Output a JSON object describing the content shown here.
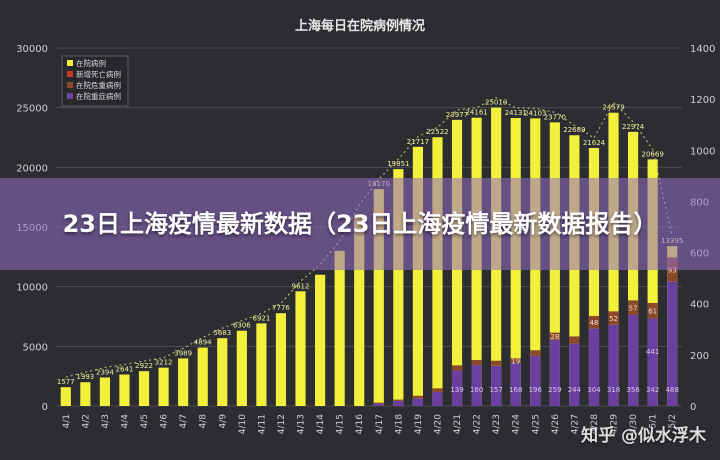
{
  "overlay_title": "23日上海疫情最新数据（23日上海疫情最新数据报告）",
  "watermark": "知乎 @似水浮木",
  "colors": {
    "background": "#2b2d31",
    "inpatient": "#f2f03a",
    "new_deaths": "#c0392b",
    "critical": "#8a4a2a",
    "severe": "#6a3fa0",
    "grid": "#4a4c52",
    "axis_text": "#cfcfcf",
    "trend": "#d8cf7a"
  },
  "chart_data": {
    "type": "bar",
    "title": "上海每日在院病例情况",
    "categories": [
      "4/1",
      "4/2",
      "4/3",
      "4/4",
      "4/5",
      "4/6",
      "4/7",
      "4/8",
      "4/9",
      "4/10",
      "4/11",
      "4/12",
      "4/13",
      "4/14",
      "4/15",
      "4/16",
      "4/17",
      "4/18",
      "4/19",
      "4/20",
      "4/21",
      "4/22",
      "4/23",
      "4/24",
      "4/25",
      "4/26",
      "4/27",
      "4/28",
      "4/29",
      "4/30",
      "5/1",
      "5/2"
    ],
    "ylim": [
      0,
      30000
    ],
    "yticks": [
      0,
      5000,
      10000,
      15000,
      20000,
      25000,
      30000
    ],
    "y2lim": [
      0,
      1400
    ],
    "y2ticks": [
      0,
      200,
      400,
      600,
      800,
      1000,
      1200,
      1400
    ],
    "grid": true,
    "legend_position": "top-left",
    "series": [
      {
        "name": "在院病例",
        "axis": "left",
        "color_key": "inpatient",
        "values": [
          1577,
          1993,
          2394,
          2641,
          2922,
          3212,
          3989,
          4894,
          5683,
          6306,
          6921,
          7776,
          9612,
          11000,
          13000,
          16000,
          18170,
          19851,
          21717,
          22522,
          23977,
          24161,
          25010,
          24131,
          24103,
          23770,
          22689,
          21624,
          24579,
          22974,
          20669,
          13395
        ],
        "labels": [
          "1577",
          "1993",
          "2394",
          "2641",
          "2922",
          "3212",
          "3989",
          "4894",
          "5683",
          "6306",
          "6921",
          "7776",
          "9612",
          "",
          "",
          "",
          "18170",
          "19851",
          "21717",
          "22522",
          "23977",
          "24161",
          "25010",
          "24131",
          "24103",
          "23770",
          "22689",
          "21624",
          "24579",
          "22974",
          "20669",
          "13395"
        ]
      },
      {
        "name": "新增死亡病例",
        "axis": "right",
        "color_key": "new_deaths",
        "values": [
          0,
          0,
          0,
          0,
          0,
          0,
          0,
          0,
          0,
          0,
          0,
          0,
          0,
          0,
          0,
          0,
          0,
          0,
          0,
          0,
          0,
          0,
          0,
          0,
          0,
          0,
          0,
          0,
          0,
          0,
          0,
          0
        ]
      },
      {
        "name": "在院危重病例",
        "axis": "right",
        "color_key": "critical",
        "values": [
          0,
          0,
          0,
          0,
          0,
          0,
          0,
          0,
          0,
          0,
          0,
          0,
          0,
          0,
          0,
          0,
          3,
          5,
          10,
          14,
          20,
          20,
          20,
          19,
          22,
          28,
          28,
          48,
          52,
          57,
          61,
          93
        ],
        "labels": [
          "",
          "",
          "",
          "",
          "",
          "",
          "",
          "",
          "",
          "",
          "",
          "",
          "",
          "",
          "",
          "",
          "",
          "",
          "",
          "",
          "",
          "",
          "",
          "19",
          "",
          "28",
          "",
          "48",
          "52",
          "57",
          "61",
          "93"
        ]
      },
      {
        "name": "在院重症病例",
        "axis": "right",
        "color_key": "severe",
        "values": [
          0,
          0,
          0,
          0,
          0,
          0,
          0,
          0,
          0,
          0,
          0,
          0,
          0,
          0,
          0,
          0,
          10,
          20,
          30,
          55,
          139,
          160,
          157,
          168,
          196,
          259,
          244,
          304,
          318,
          356,
          342,
          488
        ],
        "labels": [
          "",
          "",
          "",
          "",
          "",
          "",
          "",
          "",
          "",
          "",
          "",
          "",
          "",
          "",
          "",
          "",
          "",
          "",
          "",
          "",
          "139",
          "160",
          "157",
          "168",
          "196",
          "259",
          "244",
          "304",
          "318",
          "356",
          "342",
          "488"
        ]
      }
    ],
    "extra_labels": [
      {
        "category": "5/1",
        "text": "441"
      }
    ]
  }
}
